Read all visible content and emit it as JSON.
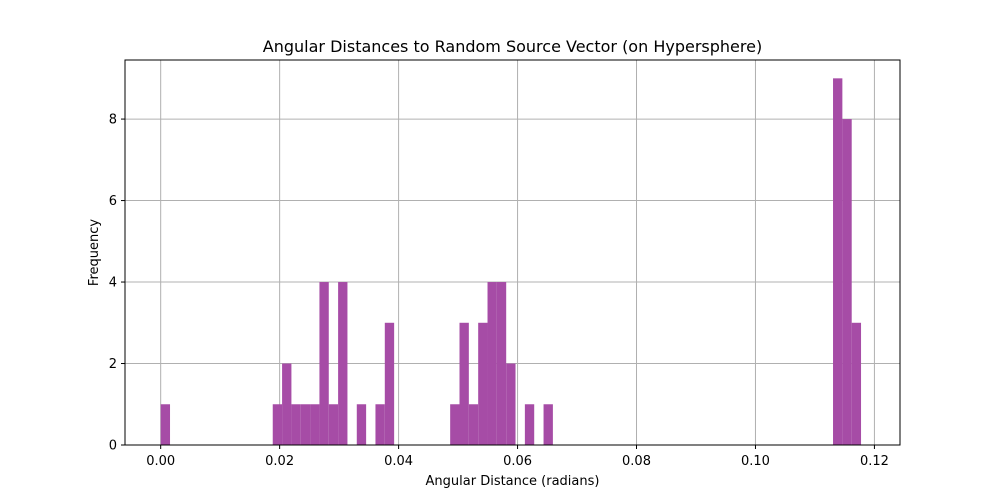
{
  "chart_data": {
    "type": "bar",
    "title": "Angular Distances to Random Source Vector (on Hypersphere)",
    "xlabel": "Angular Distance (radians)",
    "ylabel": "Frequency",
    "xlim": [
      -0.006,
      0.1243
    ],
    "ylim": [
      0,
      9.45
    ],
    "xticks": [
      0.0,
      0.02,
      0.04,
      0.06,
      0.08,
      0.1,
      0.12
    ],
    "xtick_labels": [
      "0.00",
      "0.02",
      "0.04",
      "0.06",
      "0.08",
      "0.10",
      "0.12"
    ],
    "yticks": [
      0,
      2,
      4,
      6,
      8
    ],
    "ytick_labels": [
      "0",
      "2",
      "4",
      "6",
      "8"
    ],
    "grid": true,
    "bin_start": 0.0,
    "bin_width": 0.00157,
    "bar_color": "#a64ca6",
    "values": [
      1,
      0,
      0,
      0,
      0,
      0,
      0,
      0,
      0,
      0,
      0,
      0,
      1,
      2,
      1,
      1,
      1,
      4,
      1,
      4,
      0,
      1,
      0,
      1,
      3,
      0,
      0,
      0,
      0,
      0,
      0,
      1,
      3,
      1,
      3,
      4,
      4,
      2,
      0,
      1,
      0,
      1,
      0,
      0,
      0,
      0,
      0,
      0,
      0,
      0,
      0,
      0,
      0,
      0,
      0,
      0,
      0,
      0,
      0,
      0,
      0,
      0,
      0,
      0,
      0,
      0,
      0,
      0,
      0,
      0,
      0,
      0,
      9,
      8,
      3
    ]
  }
}
